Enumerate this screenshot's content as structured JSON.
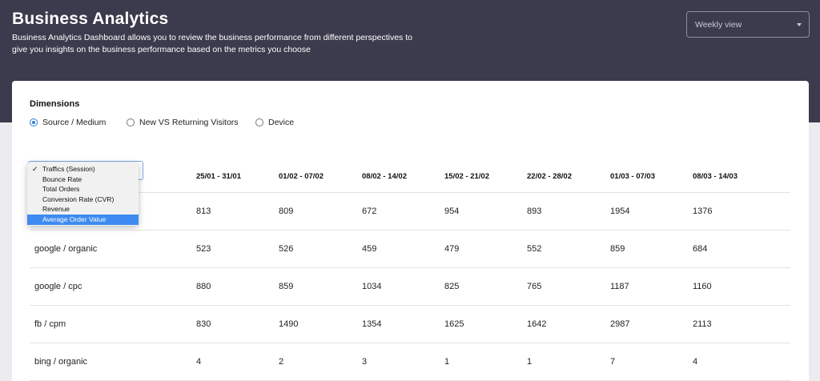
{
  "header": {
    "title": "Business Analytics",
    "description": "Business Analytics Dashboard allows you to review the business performance from different perspectives to give you insights on the business performance based on the metrics you choose",
    "view_select": "Weekly view"
  },
  "dimensions": {
    "label": "Dimensions",
    "options": [
      {
        "label": "Source / Medium",
        "selected": true
      },
      {
        "label": "New VS Returning Visitors",
        "selected": false
      },
      {
        "label": "Device",
        "selected": false
      }
    ]
  },
  "metric_dropdown": {
    "options": [
      {
        "label": "Traffics (Session)",
        "checked": true
      },
      {
        "label": "Bounce Rate"
      },
      {
        "label": "Total Orders"
      },
      {
        "label": "Conversion Rate (CVR)"
      },
      {
        "label": "Revenue"
      },
      {
        "label": "Average Order Value",
        "highlighted": true
      }
    ]
  },
  "table": {
    "columns": [
      "25/01 - 31/01",
      "01/02 - 07/02",
      "08/02 - 14/02",
      "15/02 - 21/02",
      "22/02 - 28/02",
      "01/03 - 07/03",
      "08/03 - 14/03"
    ],
    "rows": [
      {
        "label": "",
        "values": [
          "813",
          "809",
          "672",
          "954",
          "893",
          "1954",
          "1376"
        ]
      },
      {
        "label": "google / organic",
        "values": [
          "523",
          "526",
          "459",
          "479",
          "552",
          "859",
          "684"
        ]
      },
      {
        "label": "google / cpc",
        "values": [
          "880",
          "859",
          "1034",
          "825",
          "765",
          "1187",
          "1160"
        ]
      },
      {
        "label": "fb / cpm",
        "values": [
          "830",
          "1490",
          "1354",
          "1625",
          "1642",
          "2987",
          "2113"
        ]
      },
      {
        "label": "bing / organic",
        "values": [
          "4",
          "2",
          "3",
          "1",
          "1",
          "7",
          "4"
        ]
      }
    ]
  }
}
